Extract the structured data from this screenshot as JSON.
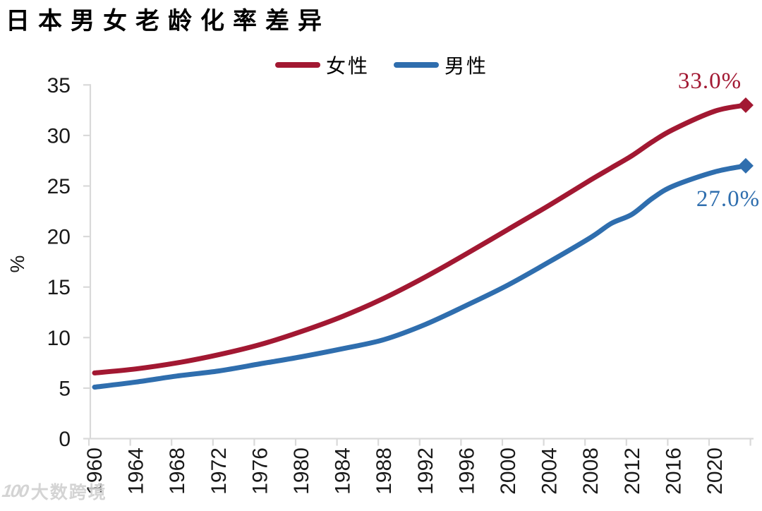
{
  "title": "日本男女老龄化率差异",
  "legend": [
    {
      "label": "女性",
      "color": "#A21832"
    },
    {
      "label": "男性",
      "color": "#2F6EAE"
    }
  ],
  "chart_data": {
    "type": "line",
    "title": "日本男女老龄化率差异",
    "ylabel": "%",
    "ylim": [
      0,
      35
    ],
    "yticks": [
      0,
      5,
      10,
      15,
      20,
      25,
      30,
      35
    ],
    "xtick_labels": [
      "1960",
      "1964",
      "1968",
      "1972",
      "1976",
      "1980",
      "1984",
      "1988",
      "1992",
      "1996",
      "2000",
      "2004",
      "2008",
      "2012",
      "2016",
      "2020"
    ],
    "x_years": [
      1960,
      1964,
      1968,
      1972,
      1976,
      1980,
      1984,
      1988,
      1992,
      1996,
      2000,
      2004,
      2008,
      2010,
      2012,
      2014,
      2016,
      2020,
      2023
    ],
    "series": [
      {
        "name": "女性",
        "color": "#A21832",
        "end_label": "33.0%",
        "end_value": 33.0,
        "values": [
          6.5,
          6.9,
          7.5,
          8.3,
          9.3,
          10.6,
          12.1,
          13.9,
          16.0,
          18.3,
          20.7,
          23.1,
          25.6,
          26.8,
          28.0,
          29.4,
          30.6,
          32.4,
          33.0
        ]
      },
      {
        "name": "男性",
        "color": "#2F6EAE",
        "end_label": "27.0%",
        "end_value": 27.0,
        "values": [
          5.1,
          5.6,
          6.2,
          6.7,
          7.4,
          8.1,
          8.9,
          9.8,
          11.3,
          13.2,
          15.2,
          17.5,
          19.9,
          21.3,
          22.2,
          23.8,
          25.0,
          26.4,
          27.0
        ]
      }
    ],
    "grid": false,
    "legend_position": "top-center",
    "axis_color": "#D9D9D9",
    "tick_label_color": "#1a1a1a",
    "last_point_marker": "diamond"
  },
  "watermark": {
    "logo": "100",
    "text": "大数跨境"
  }
}
